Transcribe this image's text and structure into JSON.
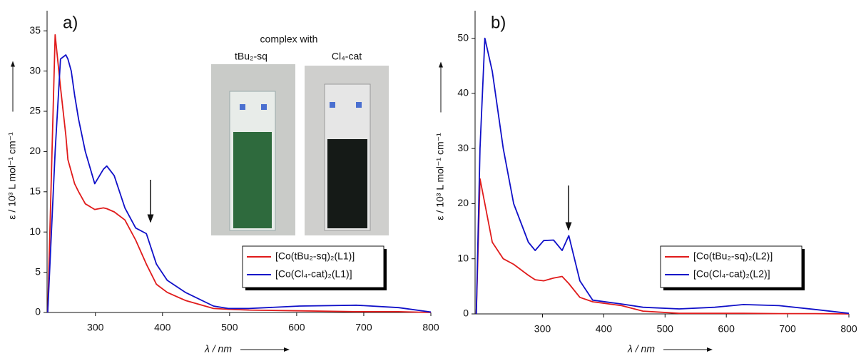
{
  "chart_data": [
    {
      "type": "line",
      "label": "a)",
      "x_label": "λ / nm",
      "y_label": "ε / 10³ L mol⁻¹ cm⁻¹",
      "xlim": [
        228,
        800
      ],
      "ylim": [
        0,
        37.5
      ],
      "xticks": [
        300,
        400,
        500,
        600,
        700,
        800
      ],
      "yticks": [
        0,
        5,
        10,
        15,
        20,
        25,
        30,
        35
      ],
      "legend": "right",
      "x": [
        229,
        240,
        248,
        256,
        259,
        264,
        269,
        275,
        285,
        299,
        312,
        317,
        328,
        344,
        360,
        376,
        391,
        407,
        434,
        476,
        498,
        529,
        604,
        689,
        752,
        800
      ],
      "series": [
        {
          "name": "[Co(tBu₂-sq)₂(L1)]",
          "color": "#e01b1b",
          "values": [
            0,
            34.5,
            28,
            22,
            19,
            17.5,
            16,
            15,
            13.5,
            12.8,
            13,
            12.9,
            12.5,
            11.5,
            9,
            6,
            3.5,
            2.5,
            1.5,
            0.5,
            0.4,
            0.3,
            0.2,
            0.1,
            0.1,
            0
          ]
        },
        {
          "name": "[Co(Cl₄-cat)₂(L1)]",
          "color": "#1010c8",
          "values": [
            0,
            20,
            31.5,
            32,
            31.5,
            30,
            27,
            24,
            20,
            16,
            17.8,
            18.2,
            17,
            13,
            10.5,
            9.8,
            6,
            4,
            2.5,
            0.8,
            0.5,
            0.5,
            0.8,
            0.9,
            0.6,
            0.05
          ]
        }
      ],
      "inset": {
        "title": "complex with",
        "labels": [
          "tBu₂-sq",
          "Cl₄-cat"
        ]
      }
    },
    {
      "type": "line",
      "label": "b)",
      "x_label": "λ / nm",
      "y_label": "ε / 10³ L mol⁻¹ cm⁻¹",
      "xlim": [
        190,
        800
      ],
      "ylim": [
        0,
        55
      ],
      "xticks": [
        300,
        400,
        500,
        600,
        700,
        800
      ],
      "yticks": [
        0,
        10,
        20,
        30,
        40,
        50
      ],
      "legend": "right",
      "x": [
        192,
        198,
        206,
        218,
        236,
        253,
        277,
        288,
        302,
        318,
        332,
        343,
        361,
        382,
        429,
        464,
        523,
        581,
        628,
        686,
        745,
        800
      ],
      "series": [
        {
          "name": "[Co(tBu₂-sq)₂(L2)]",
          "color": "#e01b1b",
          "values": [
            0,
            24.5,
            20,
            13,
            10,
            9,
            7,
            6.2,
            6,
            6.5,
            6.8,
            5.5,
            3,
            2.2,
            1.5,
            0.5,
            0.1,
            0.1,
            0.1,
            0.05,
            0.05,
            0
          ]
        },
        {
          "name": "[Co(Cl₄-cat)₂(L2)]",
          "color": "#1010c8",
          "values": [
            0,
            30,
            50,
            44,
            30,
            20,
            13,
            11.5,
            13.3,
            13.4,
            11.5,
            14.2,
            6,
            2.5,
            1.8,
            1.2,
            0.9,
            1.2,
            1.7,
            1.5,
            0.8,
            0.1
          ]
        }
      ]
    }
  ]
}
